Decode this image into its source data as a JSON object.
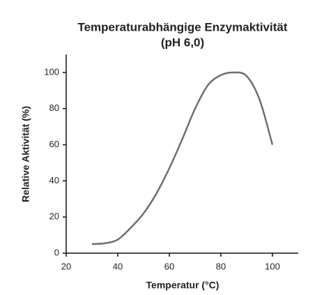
{
  "chart_data": {
    "type": "line",
    "title": "Temperaturabhängige Enzymaktivität",
    "subtitle": "(pH 6,0)",
    "x_label": "Temperatur (°C)",
    "y_label": "Relative Aktivität (%)",
    "x": [
      30,
      35,
      40,
      45,
      50,
      55,
      60,
      65,
      70,
      75,
      80,
      85,
      90,
      95,
      100
    ],
    "series": [
      {
        "name": "Relative Aktivität",
        "color": "#6e6e6e",
        "values": [
          5,
          5.5,
          7.5,
          14,
          22,
          33,
          47,
          63,
          80,
          93,
          98.5,
          100,
          98,
          85,
          60
        ]
      }
    ],
    "xlim": [
      20,
      110
    ],
    "xticks": [
      20,
      40,
      60,
      80,
      100
    ],
    "ylim": [
      0,
      110
    ],
    "yticks": [
      0,
      20,
      40,
      60,
      80,
      100
    ],
    "grid": false,
    "legend": false
  }
}
